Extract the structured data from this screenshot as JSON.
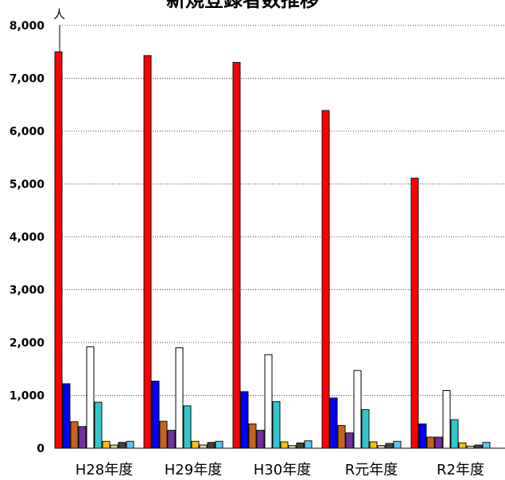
{
  "chart_data": {
    "type": "bar",
    "title": "新規登録者数推移",
    "unit": "人",
    "categories": [
      "H28年度",
      "H29年度",
      "H30年度",
      "R元年度",
      "R2年度"
    ],
    "ylim": [
      0,
      8000
    ],
    "yticks": [
      "0",
      "1,000",
      "2,000",
      "3,000",
      "4,000",
      "5,000",
      "6,000",
      "7,000",
      "8,000"
    ],
    "grid": true,
    "series": [
      {
        "color": "#ff0000",
        "values": [
          7500,
          7430,
          7300,
          6390,
          5110
        ]
      },
      {
        "color": "#0000ff",
        "values": [
          1220,
          1270,
          1070,
          950,
          460
        ]
      },
      {
        "color": "#c8651c",
        "values": [
          500,
          510,
          460,
          430,
          210
        ]
      },
      {
        "color": "#7030a0",
        "values": [
          410,
          340,
          340,
          290,
          210
        ]
      },
      {
        "color": "#ffffff",
        "values": [
          1920,
          1900,
          1770,
          1470,
          1090
        ]
      },
      {
        "color": "#33c6cc",
        "values": [
          870,
          800,
          880,
          730,
          540
        ]
      },
      {
        "color": "#ffc000",
        "values": [
          130,
          130,
          120,
          120,
          100
        ]
      },
      {
        "color": "#d9d99a",
        "values": [
          60,
          60,
          50,
          50,
          40
        ]
      },
      {
        "color": "#404040",
        "values": [
          110,
          110,
          100,
          90,
          60
        ]
      },
      {
        "color": "#5bc8f0",
        "values": [
          130,
          130,
          140,
          130,
          110
        ]
      }
    ]
  }
}
